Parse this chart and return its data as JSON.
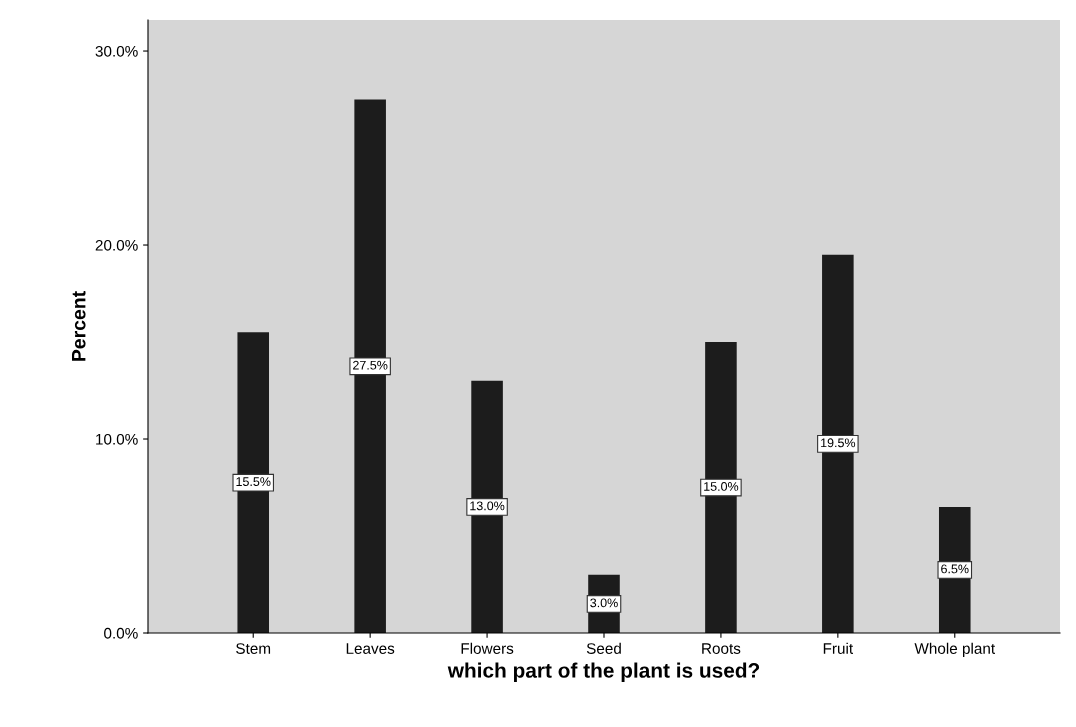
{
  "chart_data": {
    "type": "bar",
    "xlabel": "which part of the plant is used?",
    "ylabel": "Percent",
    "categories": [
      "Stem",
      "Leaves",
      "Flowers",
      "Seed",
      "Roots",
      "Fruit",
      "Whole plant"
    ],
    "values": [
      15.5,
      27.5,
      13.0,
      3.0,
      15.0,
      19.5,
      6.5
    ],
    "value_labels": [
      "15.5%",
      "27.5%",
      "13.0%",
      "3.0%",
      "15.0%",
      "19.5%",
      "6.5%"
    ],
    "color": "#1c1c1c",
    "ylim": [
      0,
      31.6
    ],
    "yticks": [
      {
        "value": 0,
        "label": "0.0%"
      },
      {
        "value": 10,
        "label": "10.0%"
      },
      {
        "value": 20,
        "label": "20.0%"
      },
      {
        "value": 30,
        "label": "30.0%"
      }
    ],
    "grid": false
  }
}
